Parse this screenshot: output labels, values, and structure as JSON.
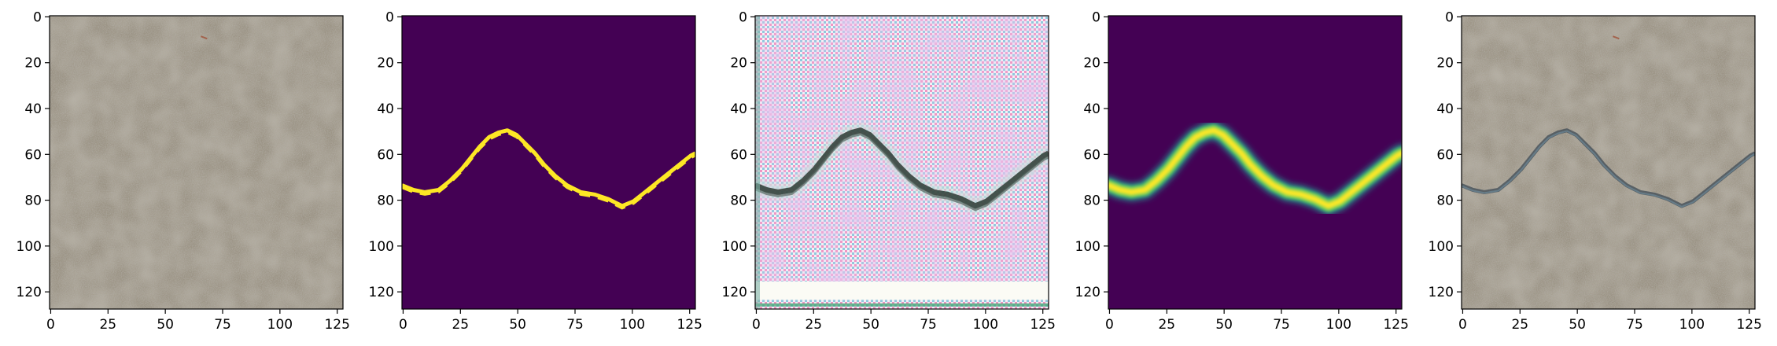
{
  "figure": {
    "panels": [
      {
        "name": "panel-concrete-original",
        "kind": "concrete"
      },
      {
        "name": "panel-crack-mask",
        "kind": "mask"
      },
      {
        "name": "panel-generated-pattern",
        "kind": "generated"
      },
      {
        "name": "panel-smooth-crack-mask",
        "kind": "softmask"
      },
      {
        "name": "panel-concrete-with-crack",
        "kind": "blended"
      }
    ],
    "axes": {
      "xlim": [
        0,
        128
      ],
      "ylim": [
        128,
        0
      ],
      "x_ticks": [
        0,
        25,
        50,
        75,
        100,
        125
      ],
      "y_ticks": [
        0,
        20,
        40,
        60,
        80,
        100,
        120
      ]
    },
    "crack_path": [
      [
        0,
        74
      ],
      [
        5,
        76
      ],
      [
        10,
        77
      ],
      [
        16,
        76
      ],
      [
        21,
        72
      ],
      [
        26,
        67
      ],
      [
        30,
        62
      ],
      [
        34,
        57
      ],
      [
        38,
        53
      ],
      [
        42,
        51
      ],
      [
        46,
        50
      ],
      [
        50,
        52
      ],
      [
        54,
        56
      ],
      [
        58,
        60
      ],
      [
        62,
        65
      ],
      [
        67,
        70
      ],
      [
        72,
        74
      ],
      [
        78,
        77
      ],
      [
        84,
        78
      ],
      [
        90,
        80
      ],
      [
        96,
        83
      ],
      [
        101,
        81
      ],
      [
        106,
        77
      ],
      [
        111,
        73
      ],
      [
        116,
        69
      ],
      [
        121,
        65
      ],
      [
        126,
        61
      ],
      [
        128,
        60
      ]
    ],
    "colors": {
      "viridis_low": "#440154",
      "viridis_high": "#fde725",
      "concrete": "#9a9283"
    }
  }
}
